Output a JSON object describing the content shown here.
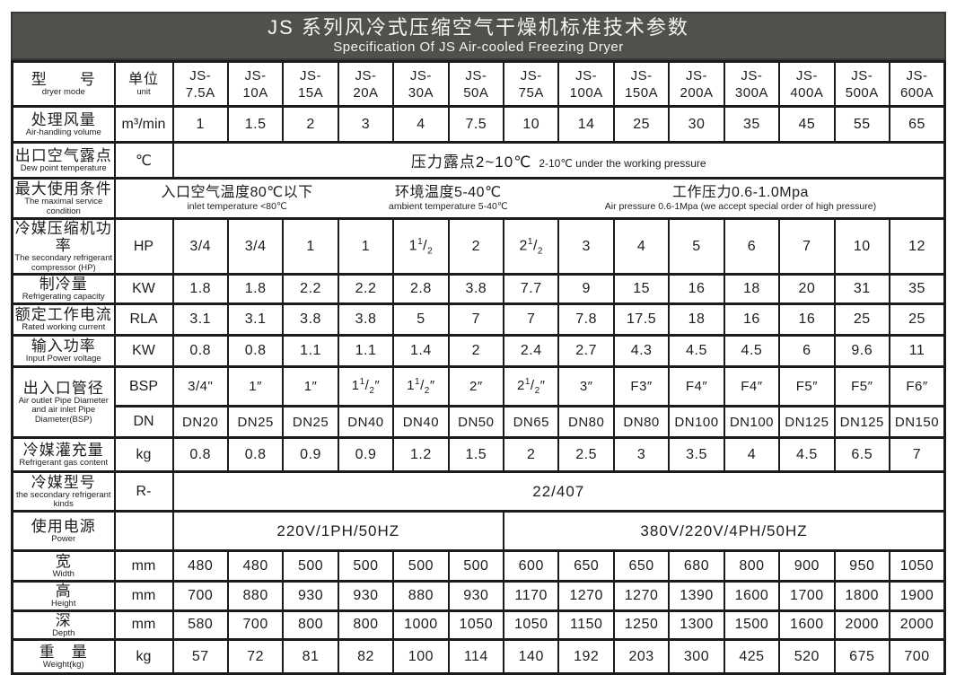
{
  "header": {
    "title_zh": "JS 系列风冷式压缩空气干燥机标准技术参数",
    "title_en": "Specification Of JS  Air-cooled Freezing Dryer"
  },
  "model_row": {
    "label_zh": "型　　号",
    "label_en": "dryer mode",
    "unit_zh": "单位",
    "unit_en": "unit",
    "prefix": "JS-",
    "sizes": [
      "7.5A",
      "10A",
      "15A",
      "20A",
      "30A",
      "50A",
      "75A",
      "100A",
      "150A",
      "200A",
      "300A",
      "400A",
      "500A",
      "600A"
    ]
  },
  "rows": [
    {
      "kind": "values",
      "name": "air-handling-volume",
      "label_zh": "处理风量",
      "label_en": "Air-handling volume",
      "unit": "m³/min",
      "values": [
        "1",
        "1.5",
        "2",
        "3",
        "4",
        "7.5",
        "10",
        "14",
        "25",
        "30",
        "35",
        "45",
        "55",
        "65"
      ]
    },
    {
      "kind": "merged",
      "name": "dew-point",
      "label_zh": "出口空气露点",
      "label_en": "Dew point temperature",
      "unit": "℃",
      "merged_zh": "压力露点2~10℃",
      "merged_en": "2-10℃ under the working pressure"
    },
    {
      "kind": "condition",
      "name": "max-service-condition",
      "label_zh": "最大使用条件",
      "label_en": "The maximal service condition",
      "groups": [
        {
          "zh": "入口空气温度80℃以下",
          "en": "inlet temperature <80℃"
        },
        {
          "zh": "环境温度5-40℃",
          "en": "ambient temperature 5-40℃"
        },
        {
          "zh": "工作压力0.6-1.0Mpa",
          "en": "Air pressure 0.6-1Mpa (we accept special order of high pressure)"
        }
      ]
    },
    {
      "kind": "values",
      "name": "compressor-power",
      "label_zh": "冷媒压缩机功率",
      "label_en": "The secondary refrigerant compressor (HP)",
      "unit": "HP",
      "values": [
        "3/4",
        "3/4",
        "1",
        "1",
        "1½",
        "2",
        "2½",
        "3",
        "4",
        "5",
        "6",
        "7",
        "10",
        "12"
      ]
    },
    {
      "kind": "values",
      "name": "refrigerating-capacity",
      "label_zh": "制冷量",
      "label_en": "Refrigerating  capacity",
      "unit": "KW",
      "values": [
        "1.8",
        "1.8",
        "2.2",
        "2.2",
        "2.8",
        "3.8",
        "7.7",
        "9",
        "15",
        "16",
        "18",
        "20",
        "31",
        "35"
      ]
    },
    {
      "kind": "values",
      "name": "rated-working-current",
      "label_zh": "额定工作电流",
      "label_en": "Rated  working  current",
      "unit": "RLA",
      "values": [
        "3.1",
        "3.1",
        "3.8",
        "3.8",
        "5",
        "7",
        "7",
        "7.8",
        "17.5",
        "18",
        "16",
        "16",
        "25",
        "25"
      ]
    },
    {
      "kind": "values",
      "name": "input-power",
      "label_zh": "输入功率",
      "label_en": "Input  Power  voltage",
      "unit": "KW",
      "values": [
        "0.8",
        "0.8",
        "1.1",
        "1.1",
        "1.4",
        "2",
        "2.4",
        "2.7",
        "4.3",
        "4.5",
        "4.5",
        "6",
        "9.6",
        "11"
      ]
    },
    {
      "kind": "pipe",
      "name": "pipe-diameter",
      "label_zh": "出入口管径",
      "label_en": "Air outlet Pipe Diameter and air inlet Pipe Diameter(BSP)",
      "sub": [
        {
          "unit": "BSP",
          "values": [
            "3/4\"",
            "1″",
            "1″",
            "1½″",
            "1½″",
            "2″",
            "2½″",
            "3″",
            "F3″",
            "F4″",
            "F4″",
            "F5″",
            "F5″",
            "F6″"
          ]
        },
        {
          "unit": "DN",
          "values": [
            "DN20",
            "DN25",
            "DN25",
            "DN40",
            "DN40",
            "DN50",
            "DN65",
            "DN80",
            "DN80",
            "DN100",
            "DN100",
            "DN125",
            "DN125",
            "DN150"
          ]
        }
      ]
    },
    {
      "kind": "values",
      "name": "refrigerant-gas-content",
      "label_zh": "冷媒灌充量",
      "label_en": "Refrigerant gas content",
      "unit": "kg",
      "values": [
        "0.8",
        "0.8",
        "0.9",
        "0.9",
        "1.2",
        "1.5",
        "2",
        "2.5",
        "3",
        "3.5",
        "4",
        "4.5",
        "6.5",
        "7"
      ]
    },
    {
      "kind": "merged",
      "name": "refrigerant-kind",
      "label_zh": "冷媒型号",
      "label_en": "the secondary refrigerant kinds",
      "unit": "R-",
      "merged_zh": "22/407",
      "merged_en": ""
    },
    {
      "kind": "power",
      "name": "power-supply",
      "label_zh": "使用电源",
      "label_en": "Power",
      "unit": "",
      "cells": [
        {
          "text": "220V/1PH/50HZ",
          "span": 6
        },
        {
          "text": "380V/220V/4PH/50HZ",
          "span": 8
        }
      ]
    },
    {
      "kind": "values",
      "name": "width",
      "label_zh": "宽",
      "label_en": "Width",
      "unit": "mm",
      "values": [
        "480",
        "480",
        "500",
        "500",
        "500",
        "500",
        "600",
        "650",
        "650",
        "680",
        "800",
        "900",
        "950",
        "1050"
      ]
    },
    {
      "kind": "values",
      "name": "height",
      "label_zh": "高",
      "label_en": "Height",
      "unit": "mm",
      "values": [
        "700",
        "880",
        "930",
        "930",
        "880",
        "930",
        "1170",
        "1270",
        "1270",
        "1390",
        "1600",
        "1700",
        "1800",
        "1900"
      ]
    },
    {
      "kind": "values",
      "name": "depth",
      "label_zh": "深",
      "label_en": "Depth",
      "unit": "mm",
      "values": [
        "580",
        "700",
        "800",
        "800",
        "1000",
        "1050",
        "1050",
        "1150",
        "1250",
        "1300",
        "1500",
        "1600",
        "2000",
        "2000"
      ]
    },
    {
      "kind": "values",
      "name": "weight",
      "label_zh": "重　量",
      "label_en": "Weight(kg)",
      "unit": "kg",
      "values": [
        "57",
        "72",
        "81",
        "82",
        "100",
        "114",
        "140",
        "192",
        "203",
        "300",
        "425",
        "520",
        "675",
        "700"
      ]
    }
  ]
}
